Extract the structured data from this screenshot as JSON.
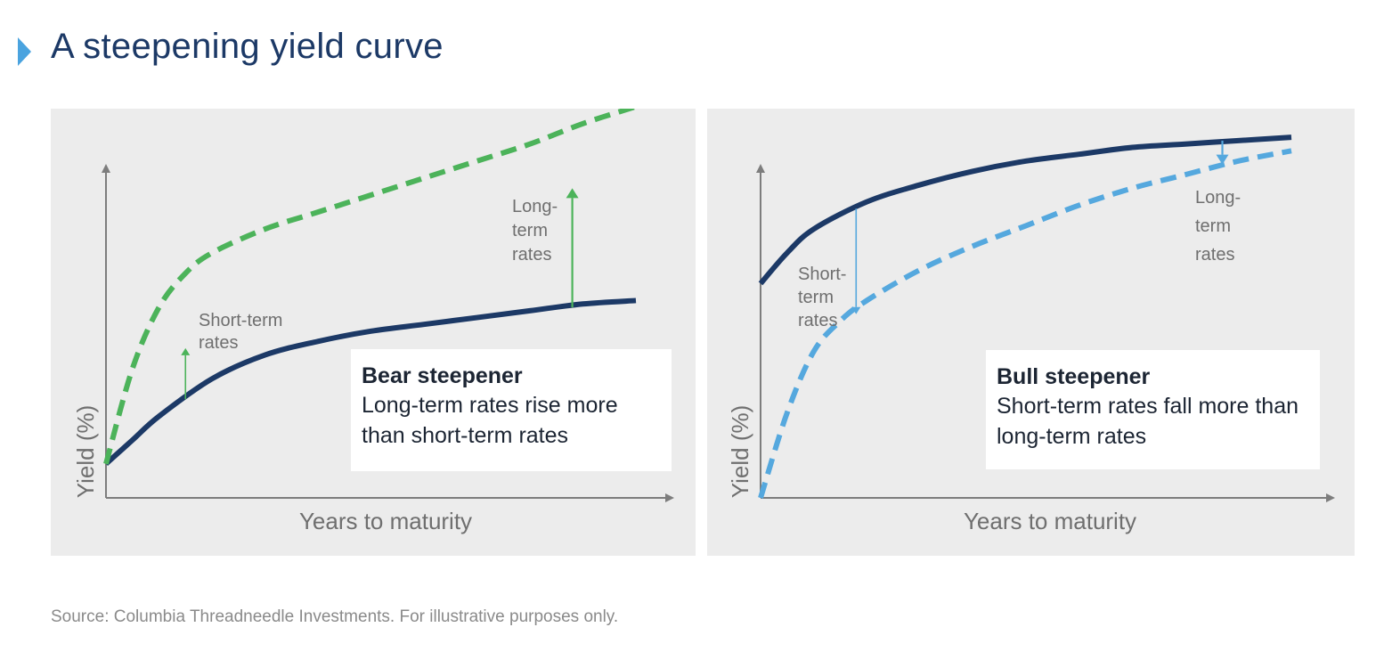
{
  "title": "A steepening yield curve",
  "source": "Source: Columbia Threadneedle Investments. For illustrative purposes only.",
  "colors": {
    "title": "#1c3966",
    "marker": "#4aa3df",
    "curve_navy": "#1c3966",
    "bear_green": "#4cb35a",
    "bull_blue": "#55a8de",
    "panel_bg": "#ececec",
    "label_gray": "#6f6f6f"
  },
  "chart_data": [
    {
      "type": "line",
      "xlabel": "Years to maturity",
      "ylabel": "Yield (%)",
      "legend_title": "Bear steepener",
      "legend_text": "Long-term rates rise more than short-term rates",
      "annotations": {
        "short_term": [
          "Short-term",
          "rates"
        ],
        "long_term": [
          "Long-",
          "term",
          "rates"
        ]
      },
      "series": [
        {
          "style": "solid",
          "color": "#1c3966",
          "points": [
            [
              0.0,
              0.1
            ],
            [
              0.05,
              0.17
            ],
            [
              0.1,
              0.24
            ],
            [
              0.2,
              0.35
            ],
            [
              0.3,
              0.42
            ],
            [
              0.4,
              0.46
            ],
            [
              0.5,
              0.49
            ],
            [
              0.6,
              0.51
            ],
            [
              0.7,
              0.53
            ],
            [
              0.8,
              0.55
            ],
            [
              0.9,
              0.57
            ],
            [
              1.0,
              0.58
            ]
          ]
        },
        {
          "style": "dashed",
          "color": "#4cb35a",
          "points": [
            [
              0.0,
              0.1
            ],
            [
              0.05,
              0.38
            ],
            [
              0.1,
              0.56
            ],
            [
              0.15,
              0.66
            ],
            [
              0.2,
              0.72
            ],
            [
              0.3,
              0.79
            ],
            [
              0.4,
              0.84
            ],
            [
              0.5,
              0.89
            ],
            [
              0.6,
              0.94
            ],
            [
              0.7,
              0.99
            ],
            [
              0.8,
              1.04
            ],
            [
              0.9,
              1.1
            ],
            [
              1.0,
              1.15
            ]
          ]
        }
      ],
      "arrows": [
        {
          "series_direction": "up",
          "x": 0.15,
          "from": 0.29,
          "to": 0.44
        },
        {
          "series_direction": "up",
          "x": 0.88,
          "from": 0.56,
          "to": 0.91
        }
      ]
    },
    {
      "type": "line",
      "xlabel": "Years to maturity",
      "ylabel": "Yield (%)",
      "legend_title": "Bull steepener",
      "legend_text": "Short-term rates fall more than long-term rates",
      "annotations": {
        "short_term": [
          "Short-",
          "term",
          "rates"
        ],
        "long_term": [
          "Long-",
          "term",
          "rates"
        ]
      },
      "series": [
        {
          "style": "solid",
          "color": "#1c3966",
          "points": [
            [
              0.0,
              0.63
            ],
            [
              0.05,
              0.72
            ],
            [
              0.1,
              0.79
            ],
            [
              0.2,
              0.87
            ],
            [
              0.3,
              0.92
            ],
            [
              0.4,
              0.96
            ],
            [
              0.5,
              0.99
            ],
            [
              0.6,
              1.01
            ],
            [
              0.7,
              1.03
            ],
            [
              0.8,
              1.04
            ],
            [
              0.9,
              1.05
            ],
            [
              1.0,
              1.06
            ]
          ]
        },
        {
          "style": "dashed",
          "color": "#55a8de",
          "points": [
            [
              0.0,
              0.0
            ],
            [
              0.05,
              0.25
            ],
            [
              0.1,
              0.43
            ],
            [
              0.15,
              0.52
            ],
            [
              0.2,
              0.58
            ],
            [
              0.3,
              0.67
            ],
            [
              0.4,
              0.74
            ],
            [
              0.5,
              0.8
            ],
            [
              0.6,
              0.86
            ],
            [
              0.7,
              0.91
            ],
            [
              0.8,
              0.95
            ],
            [
              0.9,
              0.99
            ],
            [
              1.0,
              1.02
            ]
          ]
        }
      ],
      "arrows": [
        {
          "series_direction": "down",
          "x": 0.18,
          "from": 0.85,
          "to": 0.54
        },
        {
          "series_direction": "down",
          "x": 0.87,
          "from": 1.05,
          "to": 0.98
        }
      ]
    }
  ]
}
